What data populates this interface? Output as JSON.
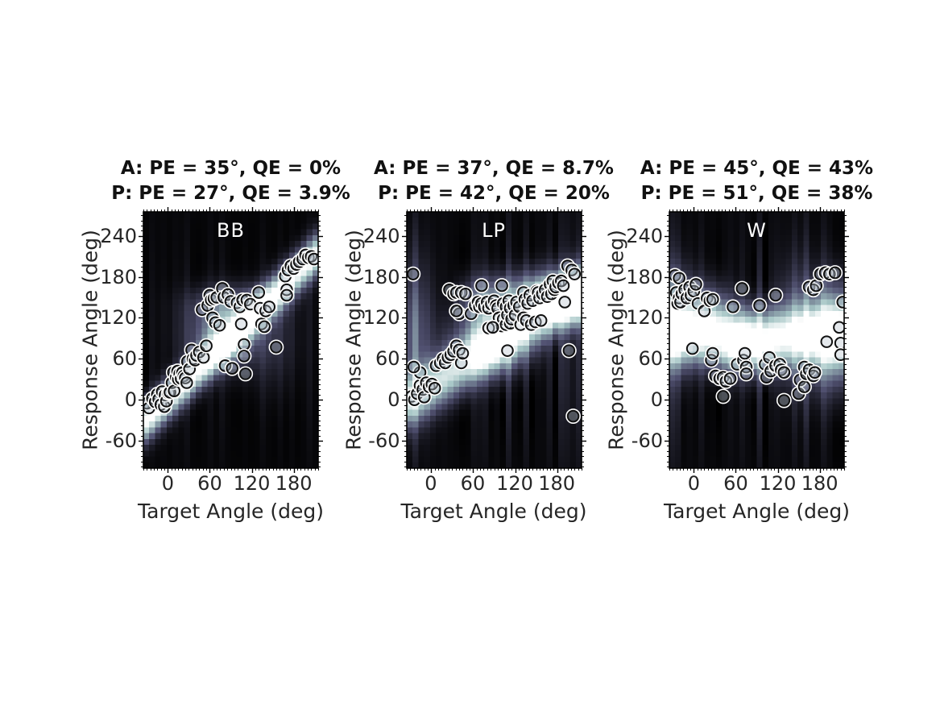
{
  "figure": {
    "background": "#ffffff",
    "text_color": "#262626",
    "title_color": "#111111",
    "colormap": "bone",
    "marker_fill": "#b9c3cd",
    "marker_fill_alpha": 0.38,
    "marker_edge": "#101010",
    "marker_halo": "#ffffff",
    "panel_letter_color": "#ffffff"
  },
  "chart_data": [
    {
      "type": "heatmap",
      "panel_label": "BB",
      "title_line1": "A: PE = 35°, QE = 0%",
      "title_line2": "P: PE = 27°, QE = 3.9%",
      "xlabel": "Target Angle (deg)",
      "ylabel": "Response Angle (deg)",
      "xlim": [
        -35,
        215
      ],
      "ylim": [
        -100,
        275
      ],
      "xticks": [
        0,
        60,
        120,
        180
      ],
      "yticks": [
        -60,
        0,
        60,
        120,
        180,
        240
      ],
      "grid": false,
      "heatmap_components": [
        {
          "kind": "diag",
          "slope": 1,
          "intercept": 0,
          "sigma": 20,
          "amp": 1.0
        },
        {
          "kind": "blob",
          "cx": 78,
          "cy": 95,
          "sx": 32,
          "sy": 32,
          "amp": 0.55
        },
        {
          "kind": "blob",
          "cx": 95,
          "cy": 140,
          "sx": 40,
          "sy": 18,
          "amp": 0.3
        },
        {
          "kind": "blob",
          "cx": 150,
          "cy": 90,
          "sx": 25,
          "sy": 50,
          "amp": 0.15
        }
      ],
      "streak": 0.06,
      "floor": 0.02,
      "seed": 101,
      "scatter": [
        [
          -35,
          -8
        ],
        [
          -30,
          -5
        ],
        [
          -27,
          -12
        ],
        [
          -22,
          2
        ],
        [
          -18,
          -3
        ],
        [
          -15,
          8
        ],
        [
          -13,
          1
        ],
        [
          -10,
          -7
        ],
        [
          -8,
          12
        ],
        [
          -5,
          -10
        ],
        [
          -4,
          7
        ],
        [
          -2,
          -2
        ],
        [
          1,
          10
        ],
        [
          3,
          11
        ],
        [
          6,
          25
        ],
        [
          9,
          13
        ],
        [
          8,
          40
        ],
        [
          12,
          33
        ],
        [
          14,
          42
        ],
        [
          15,
          30
        ],
        [
          17,
          38
        ],
        [
          19,
          31
        ],
        [
          21,
          40
        ],
        [
          23,
          35
        ],
        [
          25,
          32
        ],
        [
          27,
          25
        ],
        [
          28,
          56
        ],
        [
          31,
          45
        ],
        [
          34,
          73
        ],
        [
          36,
          60
        ],
        [
          39,
          58
        ],
        [
          41,
          65
        ],
        [
          45,
          70
        ],
        [
          49,
          132
        ],
        [
          51,
          62
        ],
        [
          55,
          79
        ],
        [
          57,
          138
        ],
        [
          60,
          153
        ],
        [
          62,
          146
        ],
        [
          64,
          120
        ],
        [
          66,
          148
        ],
        [
          68,
          113
        ],
        [
          70,
          150
        ],
        [
          74,
          109
        ],
        [
          78,
          163
        ],
        [
          80,
          150
        ],
        [
          82,
          50
        ],
        [
          86,
          154
        ],
        [
          90,
          144
        ],
        [
          92,
          46
        ],
        [
          99,
          142
        ],
        [
          103,
          136
        ],
        [
          105,
          111
        ],
        [
          107,
          146
        ],
        [
          109,
          81
        ],
        [
          109,
          64
        ],
        [
          111,
          38
        ],
        [
          113,
          146
        ],
        [
          118,
          140
        ],
        [
          130,
          157
        ],
        [
          132,
          134
        ],
        [
          134,
          111
        ],
        [
          138,
          107
        ],
        [
          140,
          130
        ],
        [
          145,
          136
        ],
        [
          155,
          77
        ],
        [
          168,
          181
        ],
        [
          170,
          161
        ],
        [
          170,
          153
        ],
        [
          172,
          190
        ],
        [
          176,
          196
        ],
        [
          180,
          192
        ],
        [
          184,
          198
        ],
        [
          188,
          202
        ],
        [
          193,
          206
        ],
        [
          197,
          212
        ],
        [
          201,
          208
        ],
        [
          205,
          210
        ],
        [
          209,
          206
        ]
      ]
    },
    {
      "type": "heatmap",
      "panel_label": "LP",
      "title_line1": "A: PE = 37°, QE = 8.7%",
      "title_line2": "P: PE = 42°, QE = 20%",
      "xlabel": "Target Angle (deg)",
      "ylabel": "Response Angle (deg)",
      "xlim": [
        -35,
        215
      ],
      "ylim": [
        -100,
        275
      ],
      "xticks": [
        0,
        60,
        120,
        180
      ],
      "yticks": [
        -60,
        0,
        60,
        120,
        180,
        240
      ],
      "grid": false,
      "heatmap_components": [
        {
          "kind": "diag",
          "slope": 0.65,
          "intercept": 20,
          "sigma": 26,
          "amp": 0.8
        },
        {
          "kind": "blob",
          "cx": 85,
          "cy": 85,
          "sx": 35,
          "sy": 30,
          "amp": 0.6
        },
        {
          "kind": "horiz",
          "mu": 145,
          "sigma": 24,
          "amp": 0.5,
          "xstart": 25,
          "xramp": 50
        },
        {
          "kind": "blob",
          "cx": 185,
          "cy": 155,
          "sx": 40,
          "sy": 25,
          "amp": 0.45
        },
        {
          "kind": "blob",
          "cx": -28,
          "cy": 90,
          "sx": 22,
          "sy": 75,
          "amp": 0.35
        }
      ],
      "streak": 0.16,
      "floor": 0.03,
      "seed": 202,
      "scatter": [
        [
          -28,
          5
        ],
        [
          -24,
          0
        ],
        [
          -20,
          9
        ],
        [
          -16,
          21
        ],
        [
          -16,
          40
        ],
        [
          -12,
          15
        ],
        [
          -10,
          4
        ],
        [
          -7,
          25
        ],
        [
          -3,
          19
        ],
        [
          1,
          23
        ],
        [
          5,
          17
        ],
        [
          -25,
          48
        ],
        [
          7,
          50
        ],
        [
          13,
          54
        ],
        [
          17,
          60
        ],
        [
          20,
          54
        ],
        [
          24,
          62
        ],
        [
          28,
          66
        ],
        [
          32,
          71
        ],
        [
          36,
          79
        ],
        [
          40,
          73
        ],
        [
          43,
          54
        ],
        [
          45,
          68
        ],
        [
          26,
          161
        ],
        [
          32,
          155
        ],
        [
          36,
          157
        ],
        [
          40,
          126
        ],
        [
          43,
          157
        ],
        [
          36,
          130
        ],
        [
          49,
          155
        ],
        [
          57,
          126
        ],
        [
          63,
          138
        ],
        [
          67,
          143
        ],
        [
          69,
          136
        ],
        [
          72,
          141
        ],
        [
          72,
          167
        ],
        [
          76,
          136
        ],
        [
          80,
          143
        ],
        [
          82,
          134
        ],
        [
          86,
          140
        ],
        [
          90,
          145
        ],
        [
          93,
          138
        ],
        [
          95,
          134
        ],
        [
          97,
          120
        ],
        [
          101,
          167
        ],
        [
          101,
          108
        ],
        [
          103,
          141
        ],
        [
          103,
          118
        ],
        [
          107,
          136
        ],
        [
          107,
          110
        ],
        [
          109,
          124
        ],
        [
          111,
          145
        ],
        [
          113,
          134
        ],
        [
          113,
          112
        ],
        [
          115,
          118
        ],
        [
          118,
          138
        ],
        [
          120,
          124
        ],
        [
          122,
          143
        ],
        [
          126,
          136
        ],
        [
          128,
          110
        ],
        [
          132,
          157
        ],
        [
          132,
          120
        ],
        [
          134,
          147
        ],
        [
          136,
          116
        ],
        [
          138,
          141
        ],
        [
          141,
          153
        ],
        [
          143,
          110
        ],
        [
          145,
          145
        ],
        [
          149,
          114
        ],
        [
          151,
          159
        ],
        [
          153,
          157
        ],
        [
          155,
          149
        ],
        [
          157,
          116
        ],
        [
          159,
          155
        ],
        [
          163,
          161
        ],
        [
          166,
          151
        ],
        [
          170,
          169
        ],
        [
          172,
          155
        ],
        [
          174,
          174
        ],
        [
          176,
          161
        ],
        [
          178,
          165
        ],
        [
          182,
          171
        ],
        [
          186,
          174
        ],
        [
          189,
          167
        ],
        [
          191,
          143
        ],
        [
          82,
          105
        ],
        [
          88,
          106
        ],
        [
          -26,
          184
        ],
        [
          109,
          72
        ],
        [
          197,
          72
        ],
        [
          195,
          196
        ],
        [
          201,
          190
        ],
        [
          205,
          184
        ],
        [
          203,
          -24
        ]
      ]
    },
    {
      "type": "heatmap",
      "panel_label": "W",
      "title_line1": "A: PE = 45°, QE = 43%",
      "title_line2": "P: PE = 51°, QE = 38%",
      "xlabel": "Target Angle (deg)",
      "ylabel": "Response Angle (deg)",
      "xlim": [
        -35,
        215
      ],
      "ylim": [
        -100,
        275
      ],
      "xticks": [
        0,
        60,
        120,
        180
      ],
      "yticks": [
        -60,
        0,
        60,
        120,
        180,
        240
      ],
      "grid": false,
      "heatmap_components": [
        {
          "kind": "horiz",
          "mu": 95,
          "sigma": 28,
          "amp": 0.75
        },
        {
          "kind": "blob",
          "cx": -28,
          "cy": 115,
          "sx": 20,
          "sy": 45,
          "amp": 0.7
        },
        {
          "kind": "blob",
          "cx": 20,
          "cy": 125,
          "sx": 22,
          "sy": 30,
          "amp": 0.45
        },
        {
          "kind": "blob",
          "cx": 75,
          "cy": 75,
          "sx": 32,
          "sy": 26,
          "amp": 0.65
        },
        {
          "kind": "blob",
          "cx": 200,
          "cy": 95,
          "sx": 28,
          "sy": 50,
          "amp": 0.8
        },
        {
          "kind": "blob",
          "cx": 145,
          "cy": 110,
          "sx": 18,
          "sy": 60,
          "amp": 0.25
        }
      ],
      "streak": 0.18,
      "floor": 0.03,
      "seed": 303,
      "scatter": [
        [
          -27,
          182
        ],
        [
          -21,
          178
        ],
        [
          -25,
          157
        ],
        [
          -23,
          141
        ],
        [
          -21,
          149
        ],
        [
          -19,
          143
        ],
        [
          -17,
          155
        ],
        [
          -13,
          161
        ],
        [
          -10,
          149
        ],
        [
          -6,
          165
        ],
        [
          -4,
          153
        ],
        [
          0,
          159
        ],
        [
          3,
          169
        ],
        [
          6,
          141
        ],
        [
          15,
          130
        ],
        [
          19,
          149
        ],
        [
          23,
          145
        ],
        [
          27,
          147
        ],
        [
          -2,
          75
        ],
        [
          25,
          58
        ],
        [
          27,
          68
        ],
        [
          31,
          35
        ],
        [
          37,
          31
        ],
        [
          42,
          33
        ],
        [
          46,
          27
        ],
        [
          52,
          31
        ],
        [
          42,
          5
        ],
        [
          56,
          136
        ],
        [
          62,
          52
        ],
        [
          69,
          163
        ],
        [
          71,
          58
        ],
        [
          73,
          68
        ],
        [
          75,
          48
        ],
        [
          75,
          38
        ],
        [
          94,
          138
        ],
        [
          102,
          52
        ],
        [
          104,
          33
        ],
        [
          108,
          62
        ],
        [
          110,
          42
        ],
        [
          117,
          50
        ],
        [
          117,
          153
        ],
        [
          123,
          52
        ],
        [
          125,
          44
        ],
        [
          129,
          40
        ],
        [
          129,
          -1
        ],
        [
          150,
          9
        ],
        [
          152,
          29
        ],
        [
          158,
          19
        ],
        [
          158,
          48
        ],
        [
          161,
          38
        ],
        [
          165,
          44
        ],
        [
          171,
          35
        ],
        [
          173,
          40
        ],
        [
          165,
          165
        ],
        [
          171,
          161
        ],
        [
          175,
          167
        ],
        [
          181,
          184
        ],
        [
          188,
          186
        ],
        [
          194,
          184
        ],
        [
          202,
          186
        ],
        [
          190,
          85
        ],
        [
          208,
          106
        ],
        [
          210,
          83
        ],
        [
          210,
          66
        ],
        [
          213,
          143
        ]
      ]
    }
  ]
}
